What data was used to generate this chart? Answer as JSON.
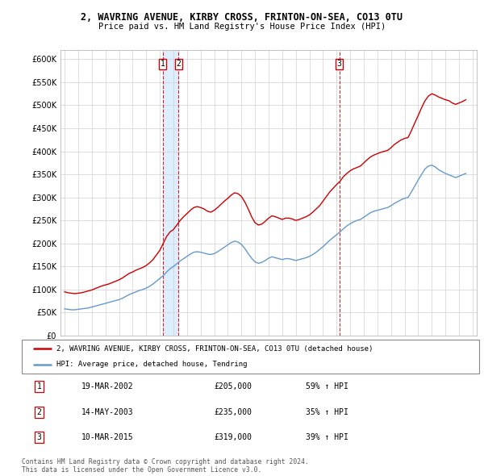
{
  "title": "2, WAVRING AVENUE, KIRBY CROSS, FRINTON-ON-SEA, CO13 0TU",
  "subtitle": "Price paid vs. HM Land Registry's House Price Index (HPI)",
  "legend_line1": "2, WAVRING AVENUE, KIRBY CROSS, FRINTON-ON-SEA, CO13 0TU (detached house)",
  "legend_line2": "HPI: Average price, detached house, Tendring",
  "transactions": [
    {
      "num": 1,
      "date": "19-MAR-2002",
      "price": 205000,
      "hpi_pct": "59% ↑ HPI",
      "year": 2002.21
    },
    {
      "num": 2,
      "date": "14-MAY-2003",
      "price": 235000,
      "hpi_pct": "35% ↑ HPI",
      "year": 2003.37
    },
    {
      "num": 3,
      "date": "10-MAR-2015",
      "price": 319000,
      "hpi_pct": "39% ↑ HPI",
      "year": 2015.19
    }
  ],
  "footer": "Contains HM Land Registry data © Crown copyright and database right 2024.\nThis data is licensed under the Open Government Licence v3.0.",
  "house_color": "#cc0000",
  "hpi_color": "#6699cc",
  "vline_color": "#cc0000",
  "marker_box_color": "#cc0000",
  "shade_color": "#ddeeff",
  "ylim": [
    0,
    620000
  ],
  "yticks": [
    0,
    50000,
    100000,
    150000,
    200000,
    250000,
    300000,
    350000,
    400000,
    450000,
    500000,
    550000,
    600000
  ],
  "xlim_start": 1994.7,
  "xlim_end": 2025.3,
  "house_prices": {
    "years": [
      1995.0,
      1995.25,
      1995.5,
      1995.75,
      1996.0,
      1996.25,
      1996.5,
      1996.75,
      1997.0,
      1997.25,
      1997.5,
      1997.75,
      1998.0,
      1998.25,
      1998.5,
      1998.75,
      1999.0,
      1999.25,
      1999.5,
      1999.75,
      2000.0,
      2000.25,
      2000.5,
      2000.75,
      2001.0,
      2001.25,
      2001.5,
      2001.75,
      2002.0,
      2002.25,
      2002.5,
      2002.75,
      2003.0,
      2003.25,
      2003.5,
      2003.75,
      2004.0,
      2004.25,
      2004.5,
      2004.75,
      2005.0,
      2005.25,
      2005.5,
      2005.75,
      2006.0,
      2006.25,
      2006.5,
      2006.75,
      2007.0,
      2007.25,
      2007.5,
      2007.75,
      2008.0,
      2008.25,
      2008.5,
      2008.75,
      2009.0,
      2009.25,
      2009.5,
      2009.75,
      2010.0,
      2010.25,
      2010.5,
      2010.75,
      2011.0,
      2011.25,
      2011.5,
      2011.75,
      2012.0,
      2012.25,
      2012.5,
      2012.75,
      2013.0,
      2013.25,
      2013.5,
      2013.75,
      2014.0,
      2014.25,
      2014.5,
      2014.75,
      2015.0,
      2015.25,
      2015.5,
      2015.75,
      2016.0,
      2016.25,
      2016.5,
      2016.75,
      2017.0,
      2017.25,
      2017.5,
      2017.75,
      2018.0,
      2018.25,
      2018.5,
      2018.75,
      2019.0,
      2019.25,
      2019.5,
      2019.75,
      2020.0,
      2020.25,
      2020.5,
      2020.75,
      2021.0,
      2021.25,
      2021.5,
      2021.75,
      2022.0,
      2022.25,
      2022.5,
      2022.75,
      2023.0,
      2023.25,
      2023.5,
      2023.75,
      2024.0,
      2024.25,
      2024.5
    ],
    "values": [
      95000,
      93000,
      92000,
      91000,
      92000,
      93000,
      95000,
      97000,
      99000,
      102000,
      105000,
      108000,
      110000,
      112000,
      115000,
      118000,
      121000,
      125000,
      130000,
      135000,
      138000,
      142000,
      145000,
      148000,
      152000,
      158000,
      165000,
      175000,
      185000,
      200000,
      215000,
      225000,
      230000,
      240000,
      250000,
      258000,
      265000,
      272000,
      278000,
      280000,
      278000,
      275000,
      270000,
      268000,
      272000,
      278000,
      285000,
      292000,
      298000,
      305000,
      310000,
      308000,
      302000,
      290000,
      275000,
      258000,
      245000,
      240000,
      242000,
      248000,
      255000,
      260000,
      258000,
      255000,
      252000,
      255000,
      255000,
      253000,
      250000,
      252000,
      255000,
      258000,
      262000,
      268000,
      275000,
      282000,
      292000,
      302000,
      312000,
      320000,
      328000,
      335000,
      345000,
      352000,
      358000,
      362000,
      365000,
      368000,
      375000,
      382000,
      388000,
      392000,
      395000,
      398000,
      400000,
      402000,
      408000,
      415000,
      420000,
      425000,
      428000,
      430000,
      445000,
      462000,
      478000,
      495000,
      510000,
      520000,
      525000,
      522000,
      518000,
      515000,
      512000,
      510000,
      505000,
      502000,
      505000,
      508000,
      512000
    ]
  },
  "hpi_prices": {
    "years": [
      1995.0,
      1995.25,
      1995.5,
      1995.75,
      1996.0,
      1996.25,
      1996.5,
      1996.75,
      1997.0,
      1997.25,
      1997.5,
      1997.75,
      1998.0,
      1998.25,
      1998.5,
      1998.75,
      1999.0,
      1999.25,
      1999.5,
      1999.75,
      2000.0,
      2000.25,
      2000.5,
      2000.75,
      2001.0,
      2001.25,
      2001.5,
      2001.75,
      2002.0,
      2002.25,
      2002.5,
      2002.75,
      2003.0,
      2003.25,
      2003.5,
      2003.75,
      2004.0,
      2004.25,
      2004.5,
      2004.75,
      2005.0,
      2005.25,
      2005.5,
      2005.75,
      2006.0,
      2006.25,
      2006.5,
      2006.75,
      2007.0,
      2007.25,
      2007.5,
      2007.75,
      2008.0,
      2008.25,
      2008.5,
      2008.75,
      2009.0,
      2009.25,
      2009.5,
      2009.75,
      2010.0,
      2010.25,
      2010.5,
      2010.75,
      2011.0,
      2011.25,
      2011.5,
      2011.75,
      2012.0,
      2012.25,
      2012.5,
      2012.75,
      2013.0,
      2013.25,
      2013.5,
      2013.75,
      2014.0,
      2014.25,
      2014.5,
      2014.75,
      2015.0,
      2015.25,
      2015.5,
      2015.75,
      2016.0,
      2016.25,
      2016.5,
      2016.75,
      2017.0,
      2017.25,
      2017.5,
      2017.75,
      2018.0,
      2018.25,
      2018.5,
      2018.75,
      2019.0,
      2019.25,
      2019.5,
      2019.75,
      2020.0,
      2020.25,
      2020.5,
      2020.75,
      2021.0,
      2021.25,
      2021.5,
      2021.75,
      2022.0,
      2022.25,
      2022.5,
      2022.75,
      2023.0,
      2023.25,
      2023.5,
      2023.75,
      2024.0,
      2024.25,
      2024.5
    ],
    "values": [
      58000,
      57000,
      56000,
      56000,
      57000,
      58000,
      59000,
      60000,
      62000,
      64000,
      66000,
      68000,
      70000,
      72000,
      74000,
      76000,
      78000,
      81000,
      85000,
      89000,
      92000,
      95000,
      98000,
      100000,
      103000,
      107000,
      112000,
      118000,
      124000,
      130000,
      138000,
      145000,
      150000,
      156000,
      162000,
      167000,
      172000,
      177000,
      181000,
      182000,
      181000,
      179000,
      177000,
      176000,
      178000,
      182000,
      187000,
      192000,
      197000,
      202000,
      205000,
      203000,
      198000,
      189000,
      178000,
      168000,
      160000,
      157000,
      159000,
      163000,
      168000,
      171000,
      169000,
      167000,
      165000,
      167000,
      167000,
      165000,
      163000,
      165000,
      167000,
      169000,
      172000,
      176000,
      181000,
      187000,
      193000,
      200000,
      207000,
      213000,
      219000,
      225000,
      232000,
      238000,
      243000,
      247000,
      250000,
      252000,
      257000,
      262000,
      267000,
      270000,
      272000,
      274000,
      276000,
      278000,
      282000,
      287000,
      291000,
      295000,
      298000,
      300000,
      312000,
      325000,
      338000,
      350000,
      362000,
      368000,
      370000,
      366000,
      360000,
      356000,
      352000,
      349000,
      346000,
      343000,
      346000,
      349000,
      352000
    ]
  }
}
